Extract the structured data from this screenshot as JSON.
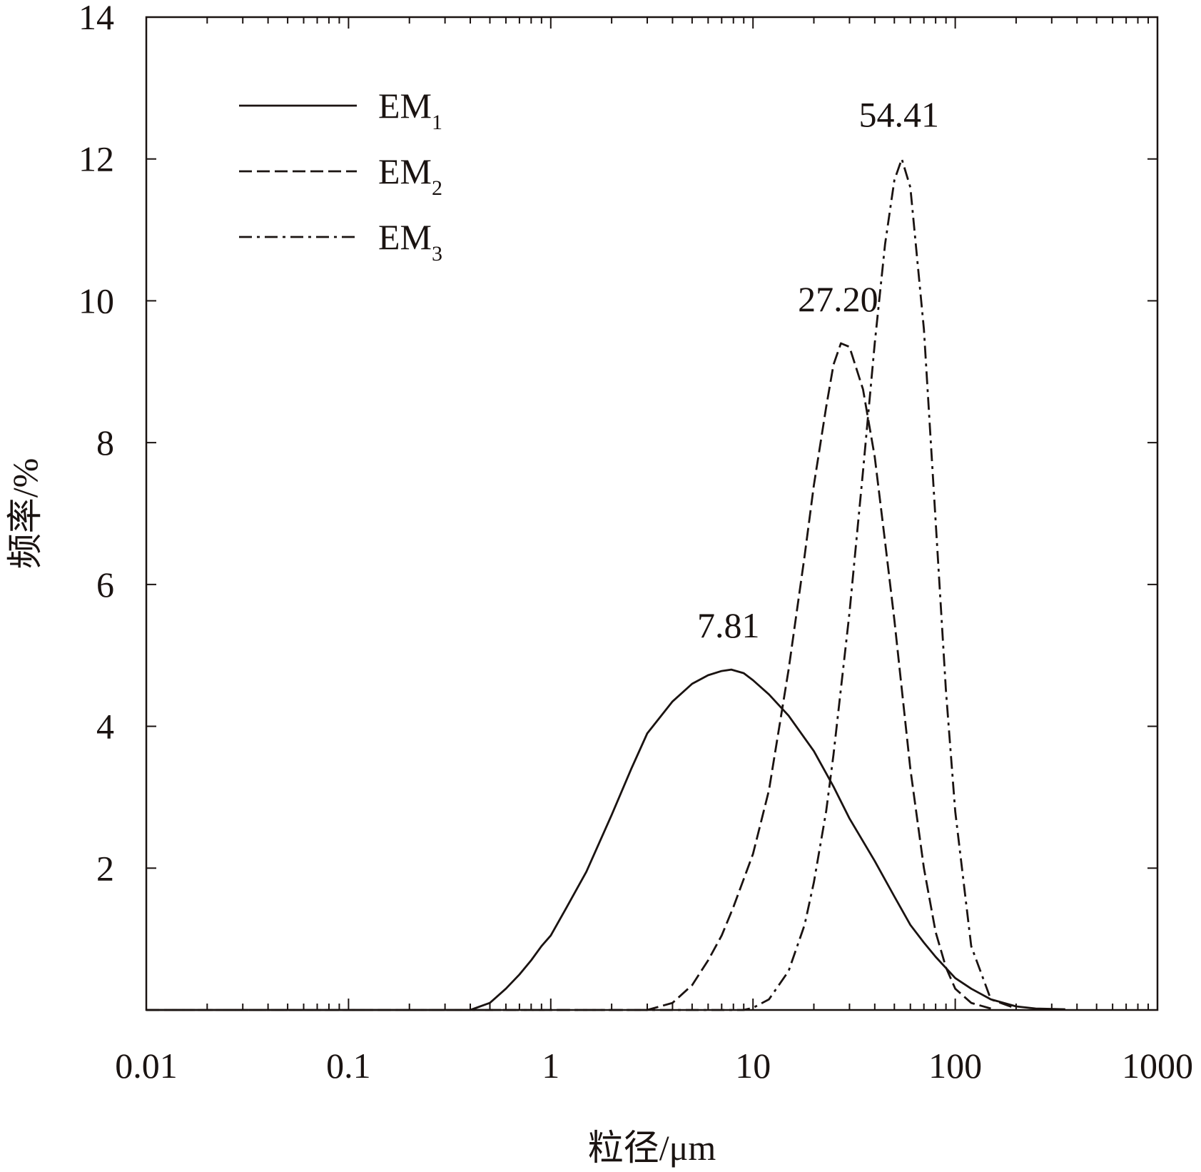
{
  "chart_data": {
    "type": "line",
    "xlabel": "粒径/μm",
    "ylabel": "频率/%",
    "xscale": "log",
    "xlim": [
      0.01,
      1000
    ],
    "ylim": [
      0,
      14
    ],
    "xticks": [
      {
        "value": 0.01,
        "label": "0.01"
      },
      {
        "value": 0.1,
        "label": "0.1"
      },
      {
        "value": 1,
        "label": "1"
      },
      {
        "value": 10,
        "label": "10"
      },
      {
        "value": 100,
        "label": "100"
      },
      {
        "value": 1000,
        "label": "1000"
      }
    ],
    "yticks": [
      {
        "value": 2,
        "label": "2"
      },
      {
        "value": 4,
        "label": "4"
      },
      {
        "value": 6,
        "label": "6"
      },
      {
        "value": 8,
        "label": "8"
      },
      {
        "value": 10,
        "label": "10"
      },
      {
        "value": 12,
        "label": "12"
      },
      {
        "value": 14,
        "label": "14"
      }
    ],
    "legend": {
      "position": "top-left"
    },
    "series": [
      {
        "name": "EM",
        "name_subscript": "1",
        "style": "solid",
        "x": [
          0.01,
          0.1,
          0.4,
          0.5,
          0.6,
          0.7,
          0.8,
          0.9,
          1.0,
          1.2,
          1.5,
          2.0,
          2.5,
          3.0,
          4.0,
          5.0,
          6.0,
          7.0,
          7.81,
          9.0,
          10,
          12,
          15,
          20,
          25,
          30,
          40,
          50,
          60,
          70,
          80,
          100,
          120,
          150,
          200,
          250,
          350
        ],
        "y": [
          0,
          0,
          0,
          0.1,
          0.3,
          0.5,
          0.7,
          0.9,
          1.05,
          1.45,
          1.95,
          2.75,
          3.4,
          3.9,
          4.35,
          4.6,
          4.72,
          4.78,
          4.8,
          4.75,
          4.65,
          4.45,
          4.15,
          3.65,
          3.15,
          2.7,
          2.1,
          1.6,
          1.2,
          0.95,
          0.75,
          0.45,
          0.3,
          0.15,
          0.05,
          0.02,
          0.01
        ]
      },
      {
        "name": "EM",
        "name_subscript": "2",
        "style": "dashed",
        "x": [
          0.01,
          3.0,
          4.0,
          5.0,
          6.0,
          7.0,
          8.0,
          10,
          12,
          15,
          18,
          20,
          23,
          25,
          27.2,
          30,
          35,
          40,
          45,
          50,
          60,
          70,
          80,
          90,
          100,
          120,
          150
        ],
        "y": [
          0,
          0,
          0.1,
          0.35,
          0.7,
          1.05,
          1.45,
          2.2,
          3.1,
          4.8,
          6.4,
          7.4,
          8.5,
          9.1,
          9.4,
          9.35,
          8.75,
          7.8,
          6.6,
          5.5,
          3.4,
          2.0,
          1.1,
          0.6,
          0.3,
          0.1,
          0.02
        ]
      },
      {
        "name": "EM",
        "name_subscript": "3",
        "style": "dashdot",
        "x": [
          0.01,
          9.0,
          10,
          12,
          15,
          18,
          20,
          23,
          25,
          30,
          35,
          40,
          45,
          50,
          54.41,
          60,
          70,
          80,
          90,
          100,
          120,
          150,
          200
        ],
        "y": [
          0,
          0,
          0.03,
          0.15,
          0.55,
          1.2,
          1.8,
          2.8,
          3.6,
          5.6,
          7.6,
          9.4,
          10.8,
          11.7,
          12.0,
          11.6,
          9.6,
          6.9,
          4.5,
          2.8,
          0.9,
          0.15,
          0.02
        ]
      }
    ],
    "annotations": [
      {
        "text": "7.81",
        "x": 7.81,
        "y": 4.8
      },
      {
        "text": "27.20",
        "x": 27.2,
        "y": 9.4
      },
      {
        "text": "54.41",
        "x": 54.41,
        "y": 12.0
      }
    ],
    "colors": {
      "line": "#1a1311",
      "axis": "#1a1311",
      "background": "#ffffff"
    }
  }
}
